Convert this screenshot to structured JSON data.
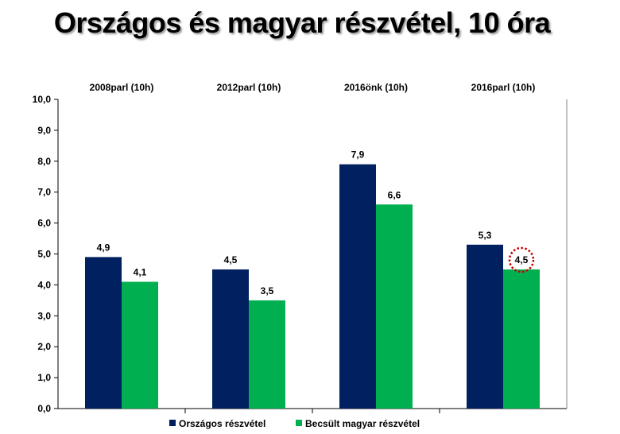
{
  "chart_data": {
    "type": "bar",
    "title": "Országos és magyar részvétel, 10 óra",
    "categories": [
      "2008parl  (10h)",
      "2012parl  (10h)",
      "2016önk  (10h)",
      "2016parl  (10h)"
    ],
    "series": [
      {
        "name": "Országos  részvétel",
        "color": "#002060",
        "values": [
          4.9,
          4.5,
          7.9,
          5.3
        ]
      },
      {
        "name": "Becsült  magyar  részvétel",
        "color": "#00b050",
        "values": [
          4.1,
          3.5,
          6.6,
          4.5
        ]
      }
    ],
    "y_ticks": [
      "0,0",
      "1,0",
      "2,0",
      "3,0",
      "4,0",
      "5,0",
      "6,0",
      "7,0",
      "8,0",
      "9,0",
      "10,0"
    ],
    "data_labels": [
      [
        "4,9",
        "4,5",
        "7,9",
        "5,3"
      ],
      [
        "4,1",
        "3,5",
        "6,6",
        "4,5"
      ]
    ],
    "ylim": [
      0,
      10
    ],
    "highlight": {
      "series": 1,
      "category": 3,
      "color": "#c00000"
    },
    "legend_position": "bottom",
    "grid": false
  }
}
